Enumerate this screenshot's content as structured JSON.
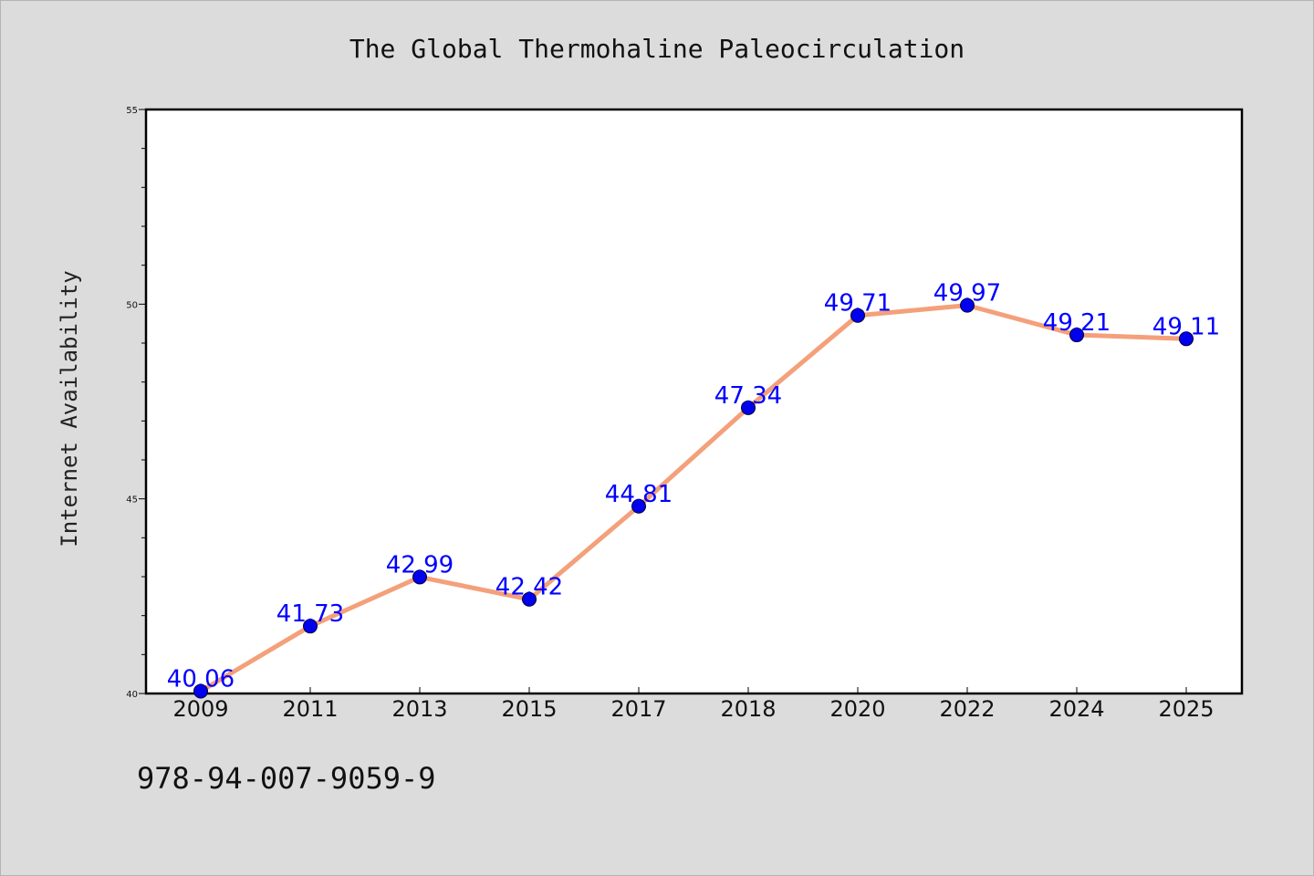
{
  "chart_data": {
    "type": "line",
    "title": "The Global Thermohaline Paleocirculation",
    "xlabel": "",
    "ylabel": "Internet Availability",
    "categories": [
      "2009",
      "2011",
      "2013",
      "2015",
      "2017",
      "2018",
      "2020",
      "2022",
      "2024",
      "2025"
    ],
    "series": [
      {
        "values": [
          40.06,
          41.73,
          42.99,
          42.42,
          44.81,
          47.34,
          49.71,
          49.97,
          49.21,
          49.11
        ],
        "data_labels": [
          "40.06",
          "41.73",
          "42.99",
          "42.42",
          "44.81",
          "47.34",
          "49.71",
          "49.97",
          "49.21",
          "49.11"
        ],
        "line_color": "#f4a07a",
        "marker_color": "#0000ee",
        "label_color": "#0000ff"
      }
    ],
    "ylim": [
      40,
      55
    ],
    "y_major_ticks": [
      40,
      45,
      50,
      55
    ],
    "y_tick_labels": [
      "40",
      "45",
      "50",
      "55"
    ],
    "y_minor_tick_step": 1,
    "grid": false,
    "legend": "none"
  },
  "footer": {
    "code": "978-94-007-9059-9"
  },
  "colors": {
    "background": "#dcdcdc",
    "plot_background": "#ffffff",
    "axis": "#000000"
  }
}
